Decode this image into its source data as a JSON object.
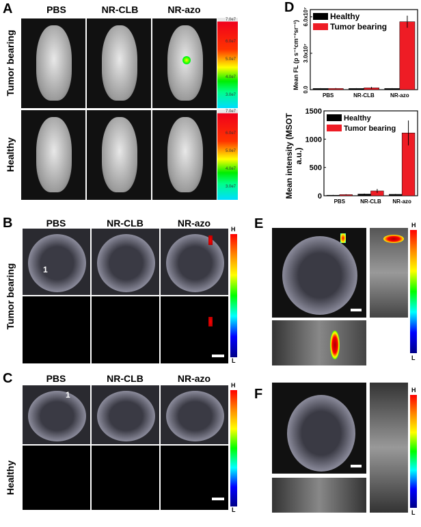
{
  "panels": {
    "A": {
      "label": "A",
      "columns": [
        "PBS",
        "NR-CLB",
        "NR-azo"
      ],
      "rows": [
        "Tumor bearing",
        "Healthy"
      ],
      "colorbar_ticks": [
        "7.0e7",
        "6.0e7",
        "5.0e7",
        "4.0e7",
        "3.0e7"
      ]
    },
    "B": {
      "label": "B",
      "columns": [
        "PBS",
        "NR-CLB",
        "NR-azo"
      ],
      "row": "Tumor bearing",
      "marker": "1",
      "colorbar_high": "H",
      "colorbar_low": "L"
    },
    "C": {
      "label": "C",
      "columns": [
        "PBS",
        "NR-CLB",
        "NR-azo"
      ],
      "row": "Healthy",
      "marker": "1",
      "colorbar_high": "H",
      "colorbar_low": "L"
    },
    "D": {
      "label": "D"
    },
    "E": {
      "label": "E",
      "colorbar_high": "H",
      "colorbar_low": "L"
    },
    "F": {
      "label": "F",
      "colorbar_high": "H",
      "colorbar_low": "L"
    }
  },
  "chart_data": [
    {
      "type": "bar",
      "categories": [
        "PBS",
        "NR-CLB",
        "NR-azo"
      ],
      "ylabel": "Mean FL (p s⁻¹cm⁻²sr⁻¹)",
      "ylim": [
        0,
        66000000.0
      ],
      "yticks": [
        "0.0",
        "3.0x10⁷",
        "6.0x10⁷"
      ],
      "legend": "top-left",
      "series": [
        {
          "name": "Healthy",
          "color": "#000000",
          "values": [
            1000000.0,
            1000000.0,
            1000000.0
          ],
          "errors": [
            200000.0,
            200000.0,
            200000.0
          ]
        },
        {
          "name": "Tumor bearing",
          "color": "#ee1c25",
          "values": [
            1000000.0,
            1500000.0,
            56000000.0
          ],
          "errors": [
            300000.0,
            800000.0,
            5000000.0
          ]
        }
      ]
    },
    {
      "type": "bar",
      "categories": [
        "PBS",
        "NR-CLB",
        "NR-azo"
      ],
      "ylabel": "Mean intensity (MSOT a.u.)",
      "ylim": [
        0,
        1500
      ],
      "yticks": [
        "0",
        "500",
        "1000",
        "1500"
      ],
      "legend": "top-left",
      "series": [
        {
          "name": "Healthy",
          "color": "#000000",
          "values": [
            10,
            30,
            25
          ],
          "errors": [
            5,
            8,
            6
          ]
        },
        {
          "name": "Tumor bearing",
          "color": "#ee1c25",
          "values": [
            20,
            85,
            1110
          ],
          "errors": [
            6,
            35,
            220
          ]
        }
      ]
    }
  ]
}
